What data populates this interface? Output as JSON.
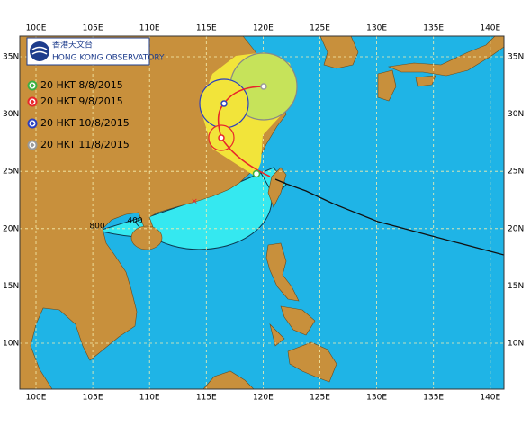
{
  "logo": {
    "chinese": "香港天文台",
    "english": "HONG KONG OBSERVATORY"
  },
  "legend": [
    {
      "label": "20 HKT 8/8/2015",
      "color": "#3cb043"
    },
    {
      "label": "20 HKT 9/8/2015",
      "color": "#e8262a"
    },
    {
      "label": "20 HKT 10/8/2015",
      "color": "#2a3fc0"
    },
    {
      "label": "20 HKT 11/8/2015",
      "color": "#9a9a9a"
    }
  ],
  "longitude_labels": [
    "100E",
    "105E",
    "110E",
    "115E",
    "120E",
    "125E",
    "130E",
    "135E",
    "140E"
  ],
  "latitude_labels": [
    "35N",
    "30N",
    "25N",
    "20N",
    "15N",
    "10N"
  ],
  "wind_radius_labels": [
    "800",
    "400"
  ]
}
